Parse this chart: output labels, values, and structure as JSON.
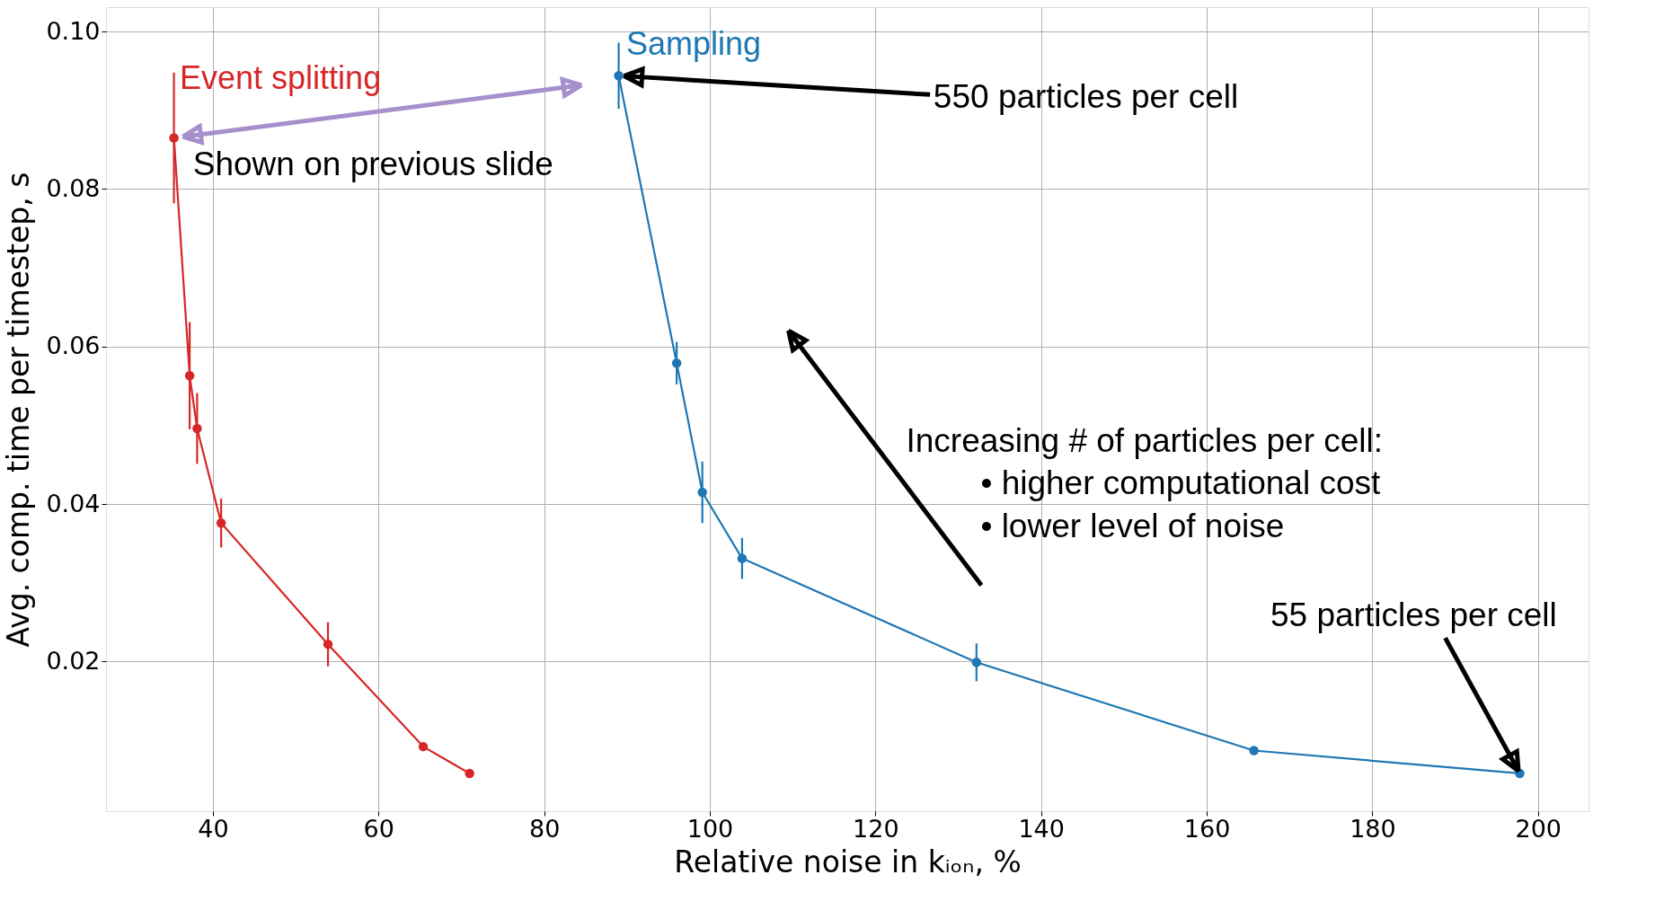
{
  "chart_data": {
    "type": "line",
    "xlabel": "Relative noise in kᵢₒₙ, %",
    "ylabel": "Avg. comp. time per timestep, s",
    "xlim": [
      27.1,
      206.1
    ],
    "ylim": [
      0.001,
      0.1031
    ],
    "xticks": [
      40,
      60,
      80,
      100,
      120,
      140,
      160,
      180,
      200
    ],
    "yticks": [
      0.02,
      0.04,
      0.06,
      0.08,
      {
        "value": 0.1,
        "label": "0.10"
      }
    ],
    "grid": true,
    "legend": false,
    "marker": "circle",
    "line_style": "solid",
    "series": [
      {
        "name": "Event splitting",
        "color": "#d62728",
        "x": [
          35.3,
          37.2,
          38.1,
          41.0,
          53.9,
          65.4,
          71.0
        ],
        "values": [
          0.0865,
          0.0563,
          0.0496,
          0.0376,
          0.0222,
          0.0092,
          0.0058
        ],
        "errors": [
          0.0083,
          0.0068,
          0.0045,
          0.0031,
          0.0028,
          null,
          null
        ]
      },
      {
        "name": "Sampling",
        "color": "#1f77b4",
        "x": [
          89.0,
          96.0,
          99.1,
          103.9,
          132.2,
          165.7,
          197.8
        ],
        "values": [
          0.0944,
          0.0579,
          0.0415,
          0.0331,
          0.0199,
          0.0087,
          0.0058
        ],
        "errors": [
          0.0042,
          0.0027,
          0.0039,
          0.0026,
          0.0024,
          null,
          null
        ]
      }
    ],
    "annotations": [
      {
        "text": "550 particles per cell",
        "x": 89.0,
        "y": 0.0944
      },
      {
        "text": "Shown on previous slide",
        "x": 35.3,
        "y": 0.0865
      },
      "Increasing # of particles per cell:\n• higher computational cost\n• lower level of noise",
      {
        "text": "55 particles per cell",
        "x": 197.8,
        "y": 0.0058
      }
    ]
  }
}
